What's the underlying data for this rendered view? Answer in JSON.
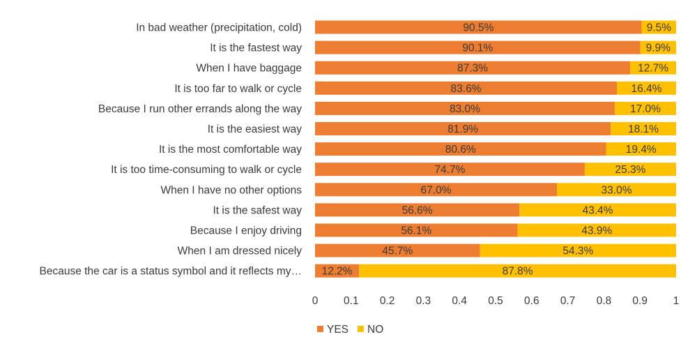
{
  "chart_data": {
    "type": "bar",
    "orientation": "horizontal",
    "stacked": true,
    "categories": [
      "In bad weather (precipitation, cold)",
      "It is the fastest way",
      "When I have baggage",
      "It is too far to walk or cycle",
      "Because I run other errands along the way",
      "It is the easiest way",
      "It is the most comfortable way",
      "It is too time-consuming to walk or cycle",
      "When I have no other options",
      "It is the safest way",
      "Because I enjoy driving",
      "When I am dressed nicely",
      "Because the car is a status symbol and it reflects my…"
    ],
    "series": [
      {
        "name": "YES",
        "color": "#ed7d31",
        "values": [
          0.905,
          0.901,
          0.873,
          0.836,
          0.83,
          0.819,
          0.806,
          0.747,
          0.67,
          0.566,
          0.561,
          0.457,
          0.122
        ],
        "labels": [
          "90.5%",
          "90.1%",
          "87.3%",
          "83.6%",
          "83.0%",
          "81.9%",
          "80.6%",
          "74.7%",
          "67.0%",
          "56.6%",
          "56.1%",
          "45.7%",
          "12.2%"
        ]
      },
      {
        "name": "NO",
        "color": "#ffc000",
        "values": [
          0.095,
          0.099,
          0.127,
          0.164,
          0.17,
          0.181,
          0.194,
          0.253,
          0.33,
          0.434,
          0.439,
          0.543,
          0.878
        ],
        "labels": [
          "9.5%",
          "9.9%",
          "12.7%",
          "16.4%",
          "17.0%",
          "18.1%",
          "19.4%",
          "25.3%",
          "33.0%",
          "43.4%",
          "43.9%",
          "54.3%",
          "87.8%"
        ]
      }
    ],
    "xlim": [
      0,
      1
    ],
    "xticks": [
      "0",
      "0.1",
      "0.2",
      "0.3",
      "0.4",
      "0.5",
      "0.6",
      "0.7",
      "0.8",
      "0.9",
      "1"
    ],
    "title": "",
    "xlabel": "",
    "ylabel": "",
    "grid": false,
    "legend": "bottom"
  }
}
